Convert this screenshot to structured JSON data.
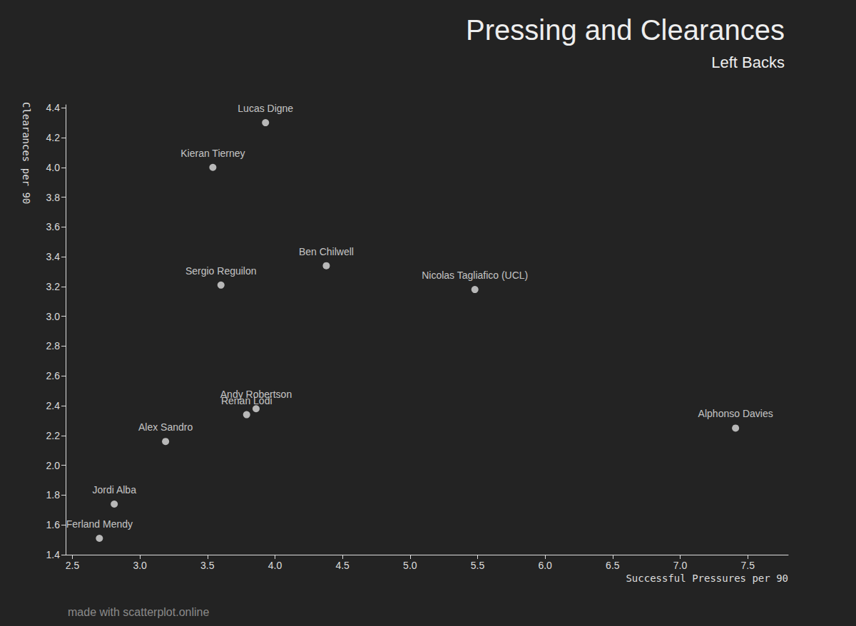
{
  "chart_data": {
    "type": "scatter",
    "title": "Pressing and Clearances",
    "subtitle": "Left Backs",
    "x_label": "Successful Pressures per 90",
    "y_label": "Clearances per 90",
    "annotations": [
      "made with scatterplot.online"
    ],
    "labels": [
      "Lucas Digne",
      "Kieran Tierney",
      "Ben Chilwell",
      "Sergio Reguilon",
      "Nicolas Tagliafico (UCL)",
      "Andy Robertson",
      "Renan Lodi",
      "Alex Sandro",
      "Alphonso Davies",
      "Jordi Alba",
      "Ferland Mendy"
    ],
    "x": [
      3.93,
      3.54,
      4.38,
      3.6,
      5.48,
      3.86,
      3.79,
      3.19,
      7.41,
      2.81,
      2.7
    ],
    "values": [
      4.3,
      4.0,
      3.34,
      3.21,
      3.18,
      2.38,
      2.34,
      2.16,
      2.25,
      1.74,
      1.51
    ],
    "color": "#dddddd",
    "grid": false,
    "xlim": [
      2.45,
      7.8
    ],
    "ylim": [
      1.4,
      4.42
    ],
    "xticks": [
      2.5,
      {
        "value": 3,
        "label": "3.0"
      },
      3.5,
      {
        "value": 4,
        "label": "4.0"
      },
      4.5,
      {
        "value": 5,
        "label": "5.0"
      },
      5.5,
      {
        "value": 6,
        "label": "6.0"
      },
      6.5,
      {
        "value": 7,
        "label": "7.0"
      },
      7.5
    ],
    "yticks": [
      1.4,
      1.6,
      1.8,
      {
        "value": 2,
        "label": "2.0"
      },
      2.2,
      2.4,
      2.6,
      2.8,
      {
        "value": 3,
        "label": "3.0"
      },
      3.2,
      3.4,
      3.6,
      3.8,
      {
        "value": 4,
        "label": "4.0"
      },
      4.2,
      4.4
    ]
  }
}
